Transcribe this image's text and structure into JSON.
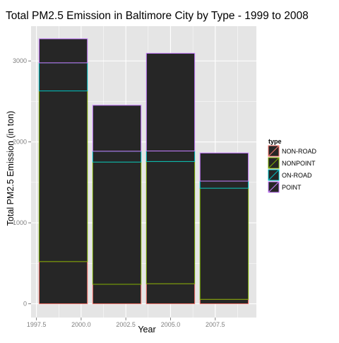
{
  "chart_data": {
    "type": "bar",
    "stacked": true,
    "title": "Total PM2.5 Emission in Baltimore City by Type - 1999 to 2008",
    "xlabel": "Year",
    "ylabel": "Total PM2.5 Emission (in ton)",
    "xlim": [
      1997.2,
      2009.8
    ],
    "ylim": [
      -170,
      3430
    ],
    "x_ticks": [
      "1997.5",
      "2000.0",
      "2002.5",
      "2005.0",
      "2007.5"
    ],
    "y_ticks": [
      "0",
      "1000",
      "2000",
      "3000"
    ],
    "categories": [
      "1999",
      "2002",
      "2005",
      "2008"
    ],
    "bar_centers": [
      1999,
      2002,
      2005,
      2008
    ],
    "bar_width": 2.7,
    "series": [
      {
        "name": "NON-ROAD",
        "values": [
          522,
          241,
          248,
          55
        ]
      },
      {
        "name": "NONPOINT",
        "values": [
          2108,
          1510,
          1510,
          1373
        ]
      },
      {
        "name": "ON-ROAD",
        "values": [
          347,
          134,
          130,
          88
        ]
      },
      {
        "name": "POINT",
        "values": [
          297,
          568,
          1207,
          347
        ]
      }
    ],
    "series_colors": [
      "#F8766D",
      "#7CAE00",
      "#00BFC4",
      "#C77CFF"
    ],
    "bar_fill": "#262626",
    "grid": true,
    "panel_background": "#E5E5E5",
    "legend": {
      "title": "type",
      "position": "right"
    }
  }
}
